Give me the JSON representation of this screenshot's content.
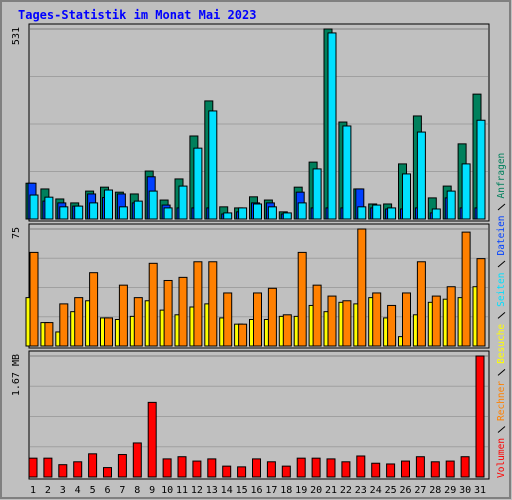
{
  "chart_data": [
    {
      "type": "bar",
      "title": "Tages-Statistik im Monat Mai 2023",
      "ylim": [
        0,
        531
      ],
      "yticks": [
        531
      ],
      "series": [
        {
          "name": "Anfragen",
          "color": "#00805c",
          "values": [
            100,
            84,
            56,
            45,
            78,
            89,
            75,
            70,
            134,
            53,
            112,
            232,
            330,
            34,
            31,
            62,
            53,
            20,
            89,
            159,
            531,
            271,
            84,
            42,
            42,
            154,
            288,
            59,
            92,
            210,
            349
          ]
        },
        {
          "name": "Dateien",
          "color": "#0040ff",
          "values": [
            100,
            50,
            45,
            36,
            70,
            60,
            70,
            45,
            118,
            39,
            31,
            31,
            31,
            14,
            20,
            45,
            45,
            14,
            75,
            31,
            31,
            31,
            84,
            31,
            28,
            28,
            31,
            17,
            59,
            31,
            31
          ]
        },
        {
          "name": "Seiten",
          "color": "#00e0ff",
          "values": [
            67,
            61,
            34,
            36,
            45,
            81,
            34,
            50,
            78,
            31,
            92,
            198,
            302,
            17,
            31,
            42,
            34,
            17,
            45,
            140,
            520,
            260,
            34,
            39,
            31,
            126,
            243,
            28,
            78,
            154,
            276
          ]
        }
      ]
    },
    {
      "type": "bar",
      "ylim": [
        0,
        75
      ],
      "yticks": [
        75
      ],
      "series": [
        {
          "name": "Besuche",
          "color": "#ffff00",
          "values": [
            31,
            15,
            9,
            22,
            29,
            18,
            17,
            19,
            29,
            23,
            20,
            25,
            27,
            18,
            14,
            17,
            17,
            19,
            19,
            26,
            22,
            28,
            27,
            31,
            18,
            6,
            20,
            28,
            30,
            31,
            38
          ]
        },
        {
          "name": "Rechner",
          "color": "#ff8000",
          "values": [
            60,
            15,
            27,
            31,
            47,
            18,
            39,
            31,
            53,
            42,
            44,
            54,
            54,
            34,
            14,
            34,
            37,
            20,
            60,
            39,
            32,
            29,
            75,
            34,
            26,
            34,
            54,
            32,
            38,
            73,
            56
          ]
        }
      ]
    },
    {
      "type": "bar",
      "ylim": [
        0,
        1.67
      ],
      "yticks": [
        {
          "value": 1.67,
          "label": "1.67 MB"
        }
      ],
      "categories": [
        "1",
        "2",
        "3",
        "4",
        "5",
        "6",
        "7",
        "8",
        "9",
        "10",
        "11",
        "12",
        "13",
        "14",
        "15",
        "16",
        "17",
        "18",
        "19",
        "20",
        "21",
        "22",
        "23",
        "24",
        "25",
        "26",
        "27",
        "28",
        "29",
        "30",
        "31"
      ],
      "highlighted_categories": [
        "6",
        "7",
        "13",
        "14",
        "20",
        "21",
        "27",
        "28"
      ],
      "highlight_color": "#008040",
      "series": [
        {
          "name": "Volumen",
          "color": "#ff0000",
          "values": [
            0.26,
            0.26,
            0.17,
            0.21,
            0.32,
            0.13,
            0.31,
            0.47,
            1.03,
            0.25,
            0.28,
            0.22,
            0.25,
            0.15,
            0.14,
            0.25,
            0.21,
            0.15,
            0.26,
            0.26,
            0.25,
            0.21,
            0.29,
            0.19,
            0.18,
            0.22,
            0.28,
            0.21,
            0.22,
            0.28,
            1.67
          ]
        }
      ]
    }
  ]
}
